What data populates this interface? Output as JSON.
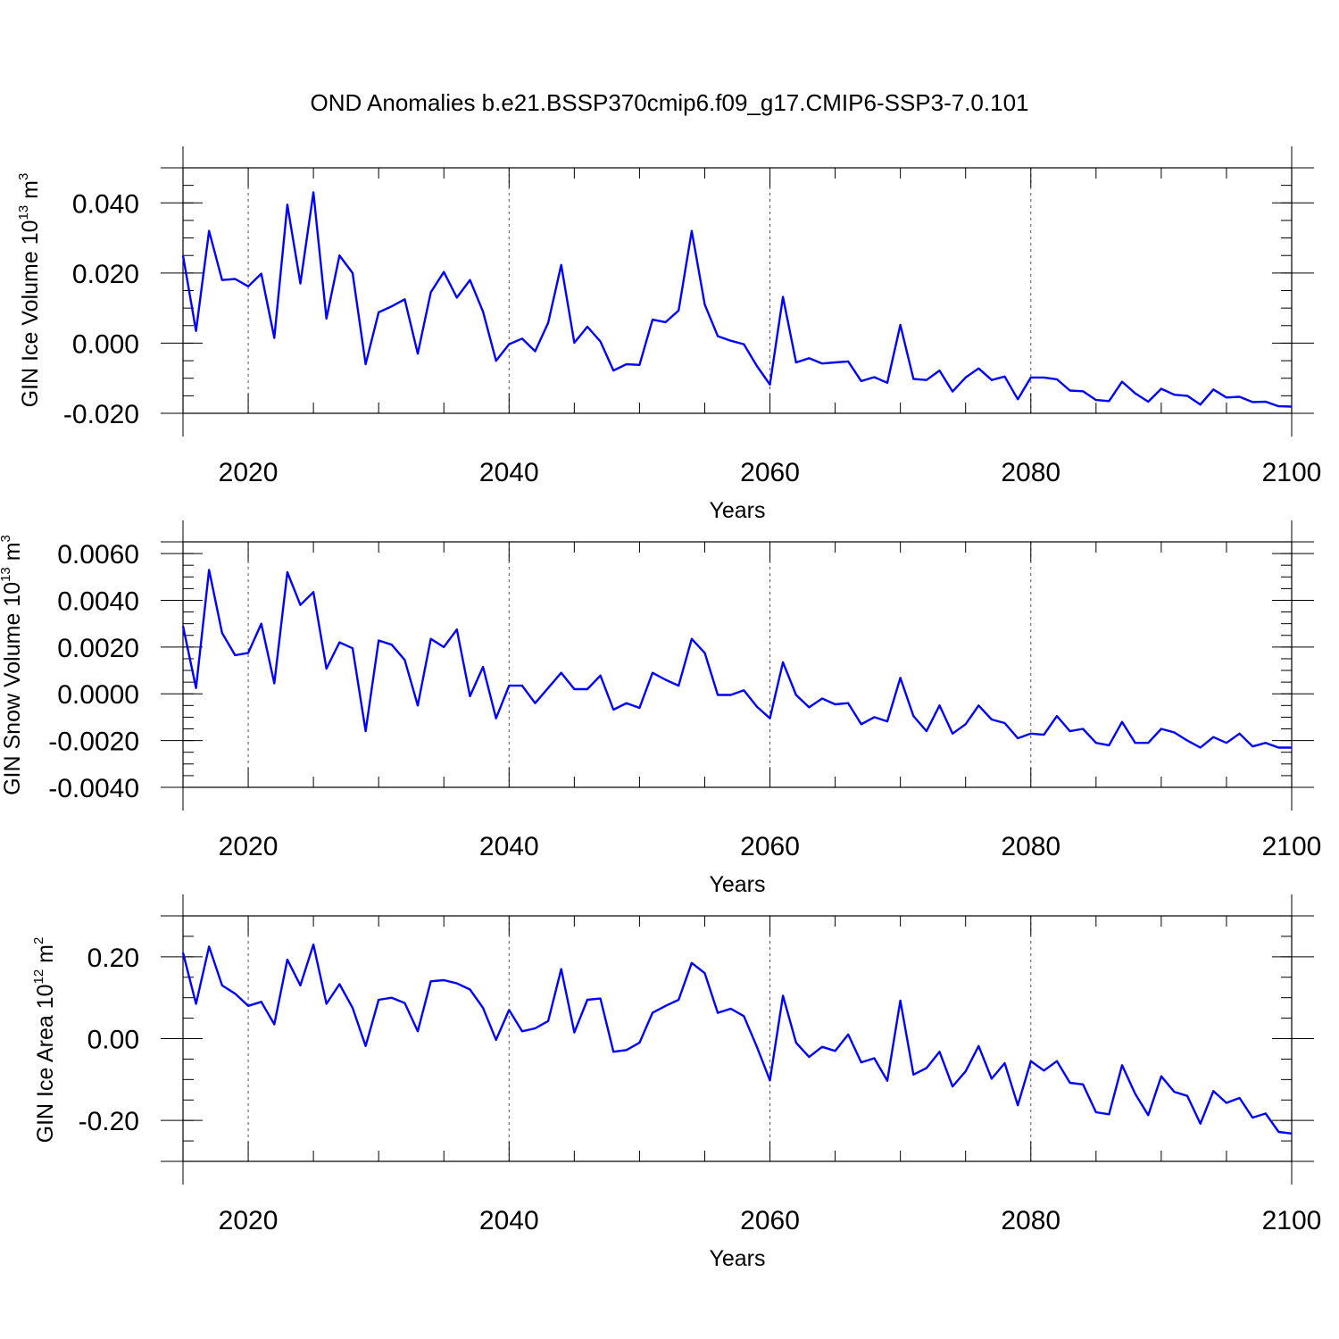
{
  "figure_title": "OND Anomalies b.e21.BSSP370cmip6.f09_g17.CMIP6-SSP3-7.0.101",
  "colors": {
    "line": "#0000ff",
    "axis": "#000000",
    "grid": "#555555",
    "background": "#ffffff"
  },
  "chart_data": [
    {
      "type": "line",
      "title": "OND Anomalies b.e21.BSSP370cmip6.f09_g17.CMIP6-SSP3-7.0.101",
      "xlabel": "Years",
      "ylabel": "GIN Ice Volume 10",
      "ylabel_exp": "13",
      "ylabel_unit": " m",
      "ylabel_unit_exp": "3",
      "xlim": [
        2015,
        2100
      ],
      "ylim": [
        -0.02,
        0.05
      ],
      "xticks": [
        2020,
        2040,
        2060,
        2080,
        2100
      ],
      "xtick_labels": [
        "2020",
        "2040",
        "2060",
        "2080",
        "2100"
      ],
      "yticks": [
        -0.02,
        0.0,
        0.02,
        0.04
      ],
      "ytick_labels": [
        "-0.020",
        "0.000",
        "0.020",
        "0.040"
      ],
      "y_minor_step": 0.005,
      "grid_x": true,
      "x": [
        2015,
        2016,
        2017,
        2018,
        2019,
        2020,
        2021,
        2022,
        2023,
        2024,
        2025,
        2026,
        2027,
        2028,
        2029,
        2030,
        2031,
        2032,
        2033,
        2034,
        2035,
        2036,
        2037,
        2038,
        2039,
        2040,
        2041,
        2042,
        2043,
        2044,
        2045,
        2046,
        2047,
        2048,
        2049,
        2050,
        2051,
        2052,
        2053,
        2054,
        2055,
        2056,
        2057,
        2058,
        2059,
        2060,
        2061,
        2062,
        2063,
        2064,
        2065,
        2066,
        2067,
        2068,
        2069,
        2070,
        2071,
        2072,
        2073,
        2074,
        2075,
        2076,
        2077,
        2078,
        2079,
        2080,
        2081,
        2082,
        2083,
        2084,
        2085,
        2086,
        2087,
        2088,
        2089,
        2090,
        2091,
        2092,
        2093,
        2094,
        2095,
        2096,
        2097,
        2098,
        2099,
        2100
      ],
      "series": [
        {
          "name": "GIN Ice Volume",
          "values": [
            0.025,
            0.0035,
            0.032,
            0.018,
            0.0183,
            0.0162,
            0.0198,
            0.0015,
            0.0395,
            0.017,
            0.043,
            0.007,
            0.025,
            0.02,
            -0.006,
            0.0088,
            0.0105,
            0.0125,
            -0.003,
            0.0145,
            0.0203,
            0.013,
            0.018,
            0.009,
            -0.005,
            -0.0003,
            0.0013,
            -0.0023,
            0.0058,
            0.0223,
            0.0001,
            0.0047,
            0.0005,
            -0.0078,
            -0.006,
            -0.0062,
            0.0067,
            0.006,
            0.0093,
            0.032,
            0.011,
            0.002,
            0.0007,
            -0.0003,
            -0.0065,
            -0.0118,
            0.0132,
            -0.0055,
            -0.0043,
            -0.0058,
            -0.0055,
            -0.0052,
            -0.0108,
            -0.0097,
            -0.0113,
            0.0052,
            -0.0102,
            -0.0105,
            -0.0078,
            -0.0138,
            -0.0098,
            -0.0072,
            -0.0105,
            -0.0095,
            -0.016,
            -0.0098,
            -0.0098,
            -0.0103,
            -0.0135,
            -0.0137,
            -0.0162,
            -0.0165,
            -0.011,
            -0.0143,
            -0.0167,
            -0.013,
            -0.0147,
            -0.015,
            -0.0175,
            -0.0132,
            -0.0155,
            -0.0153,
            -0.0168,
            -0.0167,
            -0.018,
            -0.0181
          ]
        }
      ]
    },
    {
      "type": "line",
      "xlabel": "Years",
      "ylabel": "GIN Snow Volume 10",
      "ylabel_exp": "13",
      "ylabel_unit": " m",
      "ylabel_unit_exp": "3",
      "xlim": [
        2015,
        2100
      ],
      "ylim": [
        -0.004,
        0.0065
      ],
      "xticks": [
        2020,
        2040,
        2060,
        2080,
        2100
      ],
      "xtick_labels": [
        "2020",
        "2040",
        "2060",
        "2080",
        "2100"
      ],
      "yticks": [
        -0.004,
        -0.002,
        0.0,
        0.002,
        0.004,
        0.006
      ],
      "ytick_labels": [
        "-0.0040",
        "-0.0020",
        "0.0000",
        "0.0020",
        "0.0040",
        "0.0060"
      ],
      "y_minor_step": 0.0005,
      "grid_x": true,
      "x": [
        2015,
        2016,
        2017,
        2018,
        2019,
        2020,
        2021,
        2022,
        2023,
        2024,
        2025,
        2026,
        2027,
        2028,
        2029,
        2030,
        2031,
        2032,
        2033,
        2034,
        2035,
        2036,
        2037,
        2038,
        2039,
        2040,
        2041,
        2042,
        2043,
        2044,
        2045,
        2046,
        2047,
        2048,
        2049,
        2050,
        2051,
        2052,
        2053,
        2054,
        2055,
        2056,
        2057,
        2058,
        2059,
        2060,
        2061,
        2062,
        2063,
        2064,
        2065,
        2066,
        2067,
        2068,
        2069,
        2070,
        2071,
        2072,
        2073,
        2074,
        2075,
        2076,
        2077,
        2078,
        2079,
        2080,
        2081,
        2082,
        2083,
        2084,
        2085,
        2086,
        2087,
        2088,
        2089,
        2090,
        2091,
        2092,
        2093,
        2094,
        2095,
        2096,
        2097,
        2098,
        2099,
        2100
      ],
      "series": [
        {
          "name": "GIN Snow Volume",
          "values": [
            0.0029,
            0.00025,
            0.0053,
            0.0026,
            0.00165,
            0.00175,
            0.003,
            0.00045,
            0.0052,
            0.0038,
            0.00435,
            0.00108,
            0.0022,
            0.00195,
            -0.0016,
            0.00228,
            0.0021,
            0.00145,
            -0.0005,
            0.00235,
            0.002,
            0.00275,
            -0.0001,
            0.00115,
            -0.00105,
            0.00035,
            0.00035,
            -0.0004,
            0.00025,
            0.0009,
            0.0002,
            0.0002,
            0.00078,
            -0.00068,
            -0.0004,
            -0.0006,
            0.0009,
            0.0006,
            0.00035,
            0.00235,
            0.00175,
            -5e-05,
            -5e-05,
            0.00015,
            -0.00055,
            -0.00105,
            0.00135,
            -5e-05,
            -0.00058,
            -0.0002,
            -0.00045,
            -0.0004,
            -0.0013,
            -0.001,
            -0.00118,
            0.00068,
            -0.00095,
            -0.0016,
            -0.0005,
            -0.0017,
            -0.0013,
            -0.0005,
            -0.0011,
            -0.00125,
            -0.0019,
            -0.0017,
            -0.00175,
            -0.00095,
            -0.0016,
            -0.0015,
            -0.0021,
            -0.0022,
            -0.0012,
            -0.0021,
            -0.0021,
            -0.0015,
            -0.00165,
            -0.002,
            -0.0023,
            -0.00185,
            -0.0021,
            -0.0017,
            -0.00225,
            -0.0021,
            -0.0023,
            -0.0023
          ]
        }
      ]
    },
    {
      "type": "line",
      "xlabel": "Years",
      "ylabel": "GIN Ice Area 10",
      "ylabel_exp": "12",
      "ylabel_unit": " m",
      "ylabel_unit_exp": "2",
      "xlim": [
        2015,
        2100
      ],
      "ylim": [
        -0.3,
        0.3
      ],
      "xticks": [
        2020,
        2040,
        2060,
        2080,
        2100
      ],
      "xtick_labels": [
        "2020",
        "2040",
        "2060",
        "2080",
        "2100"
      ],
      "yticks": [
        -0.2,
        0.0,
        0.2
      ],
      "ytick_labels": [
        "-0.20",
        "0.00",
        "0.20"
      ],
      "y_minor_step": 0.05,
      "grid_x": true,
      "x": [
        2015,
        2016,
        2017,
        2018,
        2019,
        2020,
        2021,
        2022,
        2023,
        2024,
        2025,
        2026,
        2027,
        2028,
        2029,
        2030,
        2031,
        2032,
        2033,
        2034,
        2035,
        2036,
        2037,
        2038,
        2039,
        2040,
        2041,
        2042,
        2043,
        2044,
        2045,
        2046,
        2047,
        2048,
        2049,
        2050,
        2051,
        2052,
        2053,
        2054,
        2055,
        2056,
        2057,
        2058,
        2059,
        2060,
        2061,
        2062,
        2063,
        2064,
        2065,
        2066,
        2067,
        2068,
        2069,
        2070,
        2071,
        2072,
        2073,
        2074,
        2075,
        2076,
        2077,
        2078,
        2079,
        2080,
        2081,
        2082,
        2083,
        2084,
        2085,
        2086,
        2087,
        2088,
        2089,
        2090,
        2091,
        2092,
        2093,
        2094,
        2095,
        2096,
        2097,
        2098,
        2099,
        2100
      ],
      "series": [
        {
          "name": "GIN Ice Area",
          "values": [
            0.21,
            0.085,
            0.225,
            0.13,
            0.11,
            0.08,
            0.09,
            0.035,
            0.193,
            0.13,
            0.23,
            0.085,
            0.133,
            0.075,
            -0.018,
            0.095,
            0.1,
            0.087,
            0.018,
            0.14,
            0.143,
            0.135,
            0.12,
            0.075,
            -0.003,
            0.07,
            0.018,
            0.025,
            0.043,
            0.17,
            0.015,
            0.095,
            0.098,
            -0.032,
            -0.028,
            -0.01,
            0.063,
            0.08,
            0.095,
            0.185,
            0.16,
            0.063,
            0.073,
            0.055,
            -0.02,
            -0.102,
            0.105,
            -0.01,
            -0.045,
            -0.02,
            -0.03,
            0.01,
            -0.058,
            -0.048,
            -0.103,
            0.093,
            -0.088,
            -0.072,
            -0.032,
            -0.117,
            -0.08,
            -0.018,
            -0.098,
            -0.06,
            -0.163,
            -0.055,
            -0.078,
            -0.055,
            -0.108,
            -0.112,
            -0.18,
            -0.185,
            -0.065,
            -0.135,
            -0.187,
            -0.092,
            -0.13,
            -0.14,
            -0.208,
            -0.128,
            -0.157,
            -0.145,
            -0.193,
            -0.183,
            -0.228,
            -0.232
          ]
        }
      ]
    }
  ]
}
